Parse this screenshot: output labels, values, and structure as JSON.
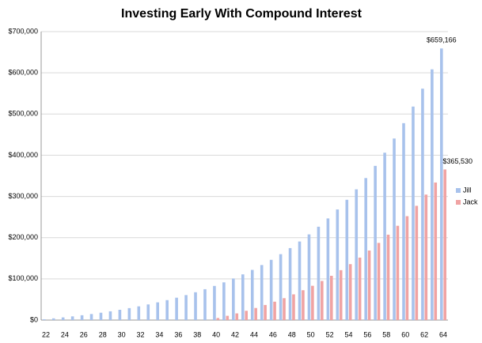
{
  "chart_data": {
    "type": "bar",
    "title": "Investing Early With Compound Interest",
    "categories": [
      22,
      null,
      24,
      null,
      26,
      null,
      28,
      null,
      30,
      null,
      32,
      null,
      34,
      null,
      36,
      null,
      38,
      null,
      40,
      null,
      42,
      null,
      44,
      null,
      46,
      null,
      48,
      null,
      50,
      null,
      52,
      null,
      54,
      null,
      56,
      null,
      58,
      null,
      60,
      null,
      62,
      null,
      64
    ],
    "series": [
      {
        "name": "Jill",
        "color": "#a8c2ec",
        "values": [
          2000,
          4160,
          6493,
          9012,
          11733,
          14672,
          17846,
          21273,
          24975,
          28973,
          33291,
          37954,
          42991,
          48430,
          54304,
          60649,
          67501,
          74901,
          82893,
          91524,
          100846,
          110913,
          121786,
          133529,
          146211,
          159908,
          174700,
          190676,
          207930,
          226565,
          246690,
          268425,
          291899,
          317251,
          344631,
          374202,
          406138,
          440629,
          477879,
          518110,
          561559,
          608484,
          659166
        ],
        "value_labels": [
          null,
          null,
          null,
          null,
          null,
          null,
          null,
          null,
          null,
          null,
          null,
          null,
          null,
          null,
          null,
          null,
          null,
          null,
          null,
          null,
          null,
          null,
          null,
          null,
          null,
          null,
          null,
          null,
          null,
          null,
          null,
          null,
          null,
          null,
          null,
          null,
          null,
          null,
          null,
          null,
          null,
          null,
          "$659,166"
        ]
      },
      {
        "name": "Jack",
        "color": "#f0a3a3",
        "values": [
          null,
          null,
          null,
          null,
          null,
          null,
          null,
          null,
          null,
          null,
          null,
          null,
          null,
          null,
          null,
          null,
          null,
          null,
          5000,
          10400,
          16232,
          22530,
          29333,
          36680,
          44614,
          53183,
          62437,
          72433,
          83227,
          94885,
          107477,
          121075,
          135760,
          151623,
          168753,
          187253,
          207233,
          228810,
          252115,
          277284,
          304466,
          333823,
          365530
        ],
        "value_labels": [
          null,
          null,
          null,
          null,
          null,
          null,
          null,
          null,
          null,
          null,
          null,
          null,
          null,
          null,
          null,
          null,
          null,
          null,
          null,
          null,
          null,
          null,
          null,
          null,
          null,
          null,
          null,
          null,
          null,
          null,
          null,
          null,
          null,
          null,
          null,
          null,
          null,
          null,
          null,
          null,
          null,
          null,
          "$365,530"
        ]
      }
    ],
    "ylim": [
      0,
      700000
    ],
    "yticks": [
      {
        "value": 0,
        "label": "$0"
      },
      {
        "value": 100000,
        "label": "$100,000"
      },
      {
        "value": 200000,
        "label": "$200,000"
      },
      {
        "value": 300000,
        "label": "$300,000"
      },
      {
        "value": 400000,
        "label": "$400,000"
      },
      {
        "value": 500000,
        "label": "$500,000"
      },
      {
        "value": 600000,
        "label": "$600,000"
      },
      {
        "value": 700000,
        "label": "$700,000"
      }
    ],
    "grid": true,
    "legend": "right"
  }
}
